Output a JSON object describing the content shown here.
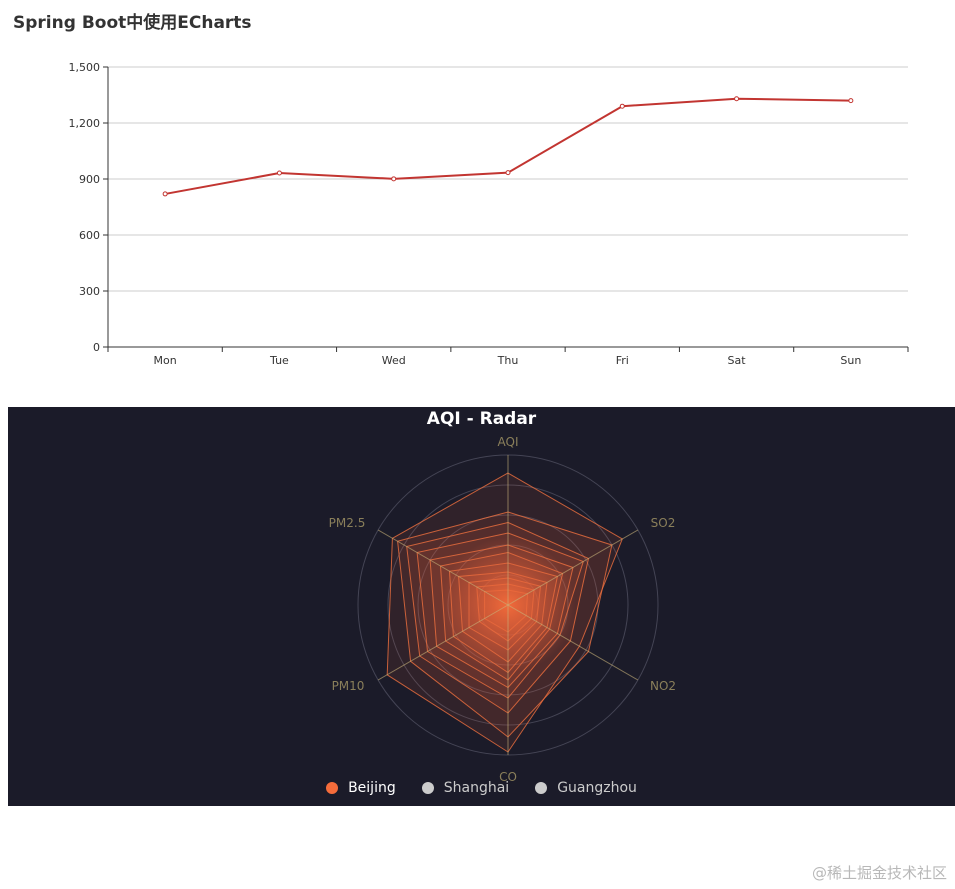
{
  "page": {
    "watermark": "@稀土掘金技术社区"
  },
  "line_chart": {
    "title": "Spring Boot中使用ECharts",
    "line_color": "#c23531"
  },
  "radar_chart": {
    "title": "AQI - Radar",
    "background": "#1b1b29",
    "indicators": [
      "AQI",
      "SO2",
      "NO2",
      "CO",
      "PM10",
      "PM2.5"
    ],
    "legend": [
      {
        "label": "Beijing",
        "color": "#f56c3b",
        "active": true
      },
      {
        "label": "Shanghai",
        "color": "#cccccc",
        "active": false
      },
      {
        "label": "Guangzhou",
        "color": "#cccccc",
        "active": false
      }
    ]
  },
  "chart_data": [
    {
      "type": "line",
      "title": "Spring Boot中使用ECharts",
      "categories": [
        "Mon",
        "Tue",
        "Wed",
        "Thu",
        "Fri",
        "Sat",
        "Sun"
      ],
      "values": [
        820,
        932,
        901,
        934,
        1290,
        1330,
        1320
      ],
      "xlabel": "",
      "ylabel": "",
      "ylim": [
        0,
        1500
      ],
      "yticks": [
        "0",
        "300",
        "600",
        "900",
        "1,200",
        "1,500"
      ],
      "grid": true,
      "legend": "none"
    },
    {
      "type": "radar",
      "title": "AQI - Radar",
      "indicators": [
        "AQI",
        "SO2",
        "NO2",
        "CO",
        "PM10",
        "PM2.5"
      ],
      "legend": [
        "Beijing",
        "Shanghai",
        "Guangzhou"
      ],
      "legend_position": "bottom",
      "visible_series": "Beijing",
      "note": "Many overlapping daily polygons for Beijing; representative outlines (fraction of max radius per axis)",
      "series": [
        {
          "name": "Beijing",
          "polygons": [
            [
              0.88,
              0.88,
              0.55,
              0.98,
              0.93,
              0.89
            ],
            [
              0.62,
              0.8,
              0.62,
              0.88,
              0.75,
              0.85
            ],
            [
              0.55,
              0.62,
              0.48,
              0.72,
              0.68,
              0.78
            ],
            [
              0.48,
              0.58,
              0.4,
              0.62,
              0.62,
              0.7
            ],
            [
              0.4,
              0.5,
              0.38,
              0.55,
              0.55,
              0.6
            ],
            [
              0.35,
              0.42,
              0.32,
              0.5,
              0.48,
              0.52
            ],
            [
              0.28,
              0.38,
              0.3,
              0.45,
              0.42,
              0.45
            ],
            [
              0.22,
              0.3,
              0.26,
              0.38,
              0.35,
              0.38
            ],
            [
              0.18,
              0.25,
              0.22,
              0.3,
              0.3,
              0.3
            ],
            [
              0.14,
              0.2,
              0.18,
              0.24,
              0.22,
              0.24
            ],
            [
              0.1,
              0.15,
              0.14,
              0.18,
              0.18,
              0.18
            ]
          ]
        }
      ]
    }
  ]
}
